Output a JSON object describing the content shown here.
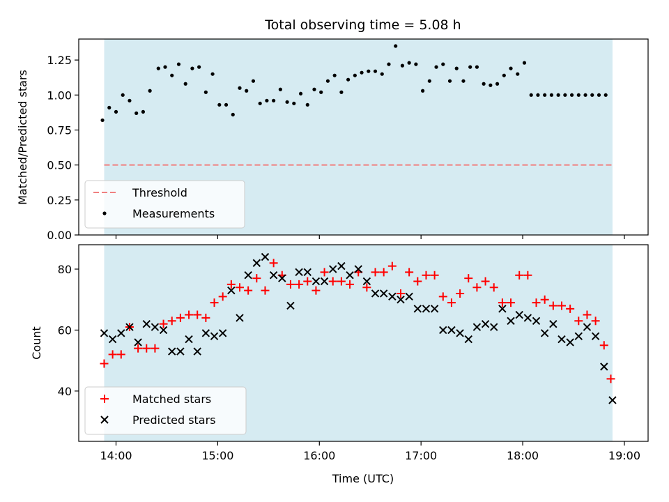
{
  "chart_data": [
    {
      "type": "scatter",
      "title": "Total observing time = 5.08 h",
      "xlabel": "",
      "ylabel": "Matched/Predicted stars",
      "ylim": [
        0,
        1.4
      ],
      "y_ticks": [
        "0.00",
        "0.25",
        "0.50",
        "0.75",
        "1.00",
        "1.25"
      ],
      "y_tick_values": [
        0,
        0.25,
        0.5,
        0.75,
        1.0,
        1.25
      ],
      "shaded_span_minutes": [
        833,
        1133
      ],
      "threshold": {
        "name": "Threshold",
        "value": 0.5,
        "color": "#f08080"
      },
      "legend_position": "lower-left",
      "series": [
        {
          "name": "Measurements",
          "color": "#000000",
          "marker": "dot",
          "x_minutes": [
            832,
            836,
            840,
            844,
            848,
            852,
            856,
            860,
            865,
            869,
            873,
            877,
            881,
            885,
            889,
            893,
            897,
            901,
            905,
            909,
            913,
            917,
            921,
            925,
            929,
            933,
            937,
            941,
            945,
            949,
            953,
            957,
            961,
            965,
            969,
            973,
            977,
            981,
            985,
            989,
            993,
            997,
            1001,
            1005,
            1009,
            1013,
            1017,
            1021,
            1025,
            1029,
            1033,
            1037,
            1041,
            1045,
            1049,
            1053,
            1057,
            1061,
            1065,
            1069,
            1073,
            1077,
            1081,
            1085,
            1089,
            1093,
            1097,
            1101,
            1105,
            1109,
            1113,
            1117,
            1121,
            1125,
            1129
          ],
          "y": [
            0.82,
            0.91,
            0.88,
            1.0,
            0.96,
            0.87,
            0.88,
            1.03,
            1.19,
            1.2,
            1.14,
            1.22,
            1.08,
            1.19,
            1.2,
            1.02,
            1.15,
            0.93,
            0.93,
            0.86,
            1.05,
            1.03,
            1.1,
            0.94,
            0.96,
            0.96,
            1.04,
            0.95,
            0.94,
            1.01,
            0.93,
            1.04,
            1.02,
            1.1,
            1.14,
            1.02,
            1.11,
            1.14,
            1.16,
            1.17,
            1.17,
            1.15,
            1.22,
            1.35,
            1.21,
            1.23,
            1.22,
            1.03,
            1.1,
            1.2,
            1.22,
            1.1,
            1.19,
            1.1,
            1.2,
            1.2,
            1.08,
            1.07,
            1.08,
            1.14,
            1.19,
            1.15,
            1.23,
            1.0,
            1.0,
            1.0,
            1.0,
            1.0,
            1.0,
            1.0,
            1.0,
            1.0,
            1.0,
            1.0,
            1.0
          ]
        }
      ]
    },
    {
      "type": "scatter",
      "title": "",
      "xlabel": "Time (UTC)",
      "ylabel": "Count",
      "ylim": [
        23.5,
        88
      ],
      "y_ticks": [
        "40",
        "60",
        "80"
      ],
      "y_tick_values": [
        40,
        60,
        80
      ],
      "x_ticks": [
        "14:00",
        "15:00",
        "16:00",
        "17:00",
        "18:00",
        "19:00"
      ],
      "x_tick_minutes": [
        840,
        900,
        960,
        1020,
        1080,
        1140
      ],
      "xlim_minutes": [
        818,
        1154
      ],
      "shaded_span_minutes": [
        833,
        1133
      ],
      "legend_position": "lower-left",
      "series": [
        {
          "name": "Matched stars",
          "color": "#ff0000",
          "marker": "plus",
          "x_minutes": [
            833,
            838,
            843,
            848,
            853,
            858,
            863,
            868,
            873,
            878,
            883,
            888,
            893,
            898,
            903,
            908,
            913,
            918,
            923,
            928,
            933,
            938,
            943,
            948,
            953,
            958,
            963,
            968,
            973,
            978,
            983,
            988,
            993,
            998,
            1003,
            1008,
            1013,
            1018,
            1023,
            1028,
            1033,
            1038,
            1043,
            1048,
            1053,
            1058,
            1063,
            1068,
            1073,
            1078,
            1083,
            1088,
            1093,
            1098,
            1103,
            1108,
            1113,
            1118,
            1123,
            1128,
            1132
          ],
          "y": [
            49,
            52,
            52,
            61,
            54,
            54,
            54,
            62,
            63,
            64,
            65,
            65,
            64,
            69,
            71,
            75,
            74,
            73,
            77,
            73,
            82,
            78,
            75,
            75,
            76,
            73,
            79,
            76,
            76,
            75,
            79,
            74,
            79,
            79,
            81,
            72,
            79,
            76,
            78,
            78,
            71,
            69,
            72,
            77,
            74,
            76,
            74,
            69,
            69,
            78,
            78,
            69,
            70,
            68,
            68,
            67,
            63,
            65,
            63,
            55,
            44
          ]
        },
        {
          "name": "Predicted stars",
          "color": "#000000",
          "marker": "x",
          "x_minutes": [
            833,
            838,
            843,
            848,
            853,
            858,
            863,
            868,
            873,
            878,
            883,
            888,
            893,
            898,
            903,
            908,
            913,
            918,
            923,
            928,
            933,
            938,
            943,
            948,
            953,
            958,
            963,
            968,
            973,
            978,
            983,
            988,
            993,
            998,
            1003,
            1008,
            1013,
            1018,
            1023,
            1028,
            1033,
            1038,
            1043,
            1048,
            1053,
            1058,
            1063,
            1068,
            1073,
            1078,
            1083,
            1088,
            1093,
            1098,
            1103,
            1108,
            1113,
            1118,
            1123,
            1128,
            1133
          ],
          "y": [
            59,
            57,
            59,
            61,
            56,
            62,
            61,
            60,
            53,
            53,
            57,
            53,
            59,
            58,
            59,
            73,
            64,
            78,
            82,
            84,
            78,
            77,
            68,
            79,
            79,
            76,
            76,
            80,
            81,
            78,
            80,
            76,
            72,
            72,
            71,
            70,
            71,
            67,
            67,
            67,
            60,
            60,
            59,
            57,
            61,
            62,
            61,
            67,
            63,
            65,
            64,
            63,
            59,
            62,
            57,
            56,
            58,
            61,
            58,
            48,
            37
          ]
        }
      ]
    }
  ]
}
